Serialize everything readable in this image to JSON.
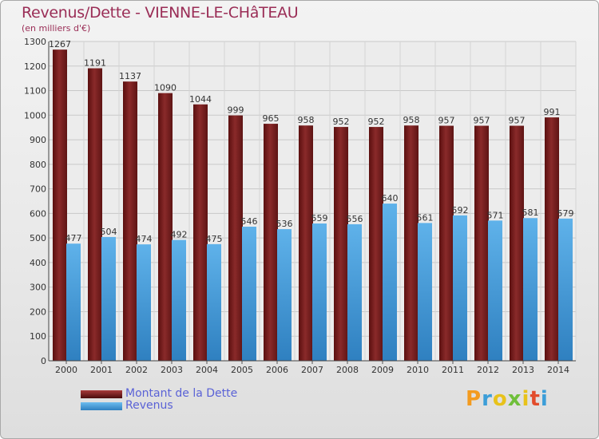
{
  "chart_data": {
    "type": "bar",
    "title": "Revenus/Dette - VIENNE-LE-CHâTEAU",
    "subtitle": "(en milliers d'€)",
    "categories": [
      "2000",
      "2001",
      "2002",
      "2003",
      "2004",
      "2005",
      "2006",
      "2007",
      "2008",
      "2009",
      "2010",
      "2011",
      "2012",
      "2013",
      "2014"
    ],
    "series": [
      {
        "name": "Montant de la Dette",
        "color": "#8a2a2a",
        "values": [
          1267,
          1191,
          1137,
          1090,
          1044,
          999,
          965,
          958,
          952,
          952,
          958,
          957,
          957,
          957,
          991
        ]
      },
      {
        "name": "Revenus",
        "color": "#4ea3df",
        "values": [
          477,
          504,
          474,
          492,
          475,
          546,
          536,
          559,
          556,
          640,
          561,
          592,
          571,
          581,
          579
        ]
      }
    ],
    "ylim": [
      0,
      1300
    ],
    "yticks": [
      0,
      100,
      200,
      300,
      400,
      500,
      600,
      700,
      800,
      900,
      1000,
      1100,
      1200,
      1300
    ],
    "grid": true,
    "legend_position": "bottom-left"
  },
  "brand": {
    "letters": [
      "P",
      "r",
      "o",
      "x",
      "i",
      "t",
      "i"
    ],
    "colors": [
      "#f39b1f",
      "#3c9ed8",
      "#e8c21a",
      "#6fbf3a",
      "#e8c21a",
      "#e24c2c",
      "#3c9ed8"
    ]
  }
}
